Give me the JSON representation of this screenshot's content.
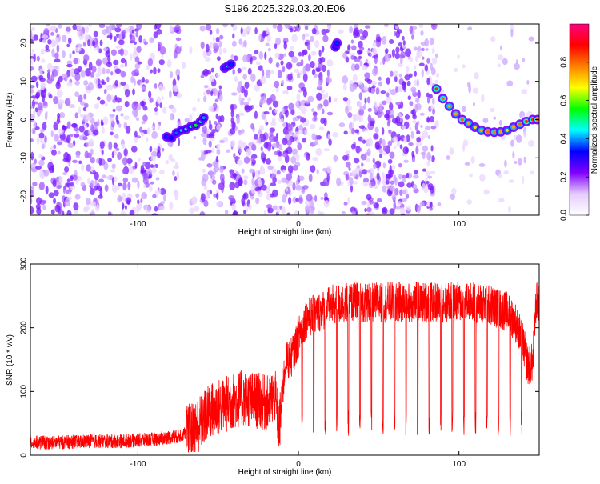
{
  "figure_title": "S196.2025.329.03.20.E06",
  "chart_data": [
    {
      "type": "heatmap",
      "title": "S196.2025.329.03.20.E06",
      "xlabel": "Height of straight line (km)",
      "ylabel": "Frequency (Hz)",
      "xlim": [
        -167,
        150
      ],
      "ylim": [
        -25,
        25
      ],
      "xticks": [
        -100,
        0,
        100
      ],
      "yticks": [
        -20,
        -10,
        0,
        10,
        20
      ],
      "grid": false,
      "colorbar": {
        "label": "Normalized spectral amplitude",
        "range": [
          0,
          1
        ],
        "ticks": [
          0.0,
          0.2,
          0.4,
          0.6,
          0.8
        ],
        "colors": [
          "#ffffff",
          "#e6ccff",
          "#8000ff",
          "#0000ff",
          "#00ffff",
          "#00ff00",
          "#ffff00",
          "#ff8000",
          "#ff0000",
          "#ff0080"
        ]
      },
      "data_gaps_km": [
        [
          -84,
          -78
        ],
        [
          -74,
          -60
        ],
        [
          -47,
          -42
        ],
        [
          20,
          29
        ],
        [
          85,
          150
        ]
      ],
      "features": [
        {
          "name": "bright-track-mid",
          "x": [
            -82,
            -79,
            -76,
            -73,
            -70,
            -67,
            -64,
            -61,
            -59
          ],
          "y": [
            -4.5,
            -4.8,
            -3.5,
            -2.8,
            -2.5,
            -1.8,
            -1.5,
            -0.5,
            0.5
          ],
          "amplitude": [
            0.35,
            0.32,
            0.38,
            0.42,
            0.45,
            0.5,
            0.55,
            0.48,
            0.4
          ]
        },
        {
          "name": "bright-spot-upper",
          "x": [
            -46,
            -44,
            -42
          ],
          "y": [
            13.5,
            14,
            14.5
          ],
          "amplitude": [
            0.35,
            0.45,
            0.35
          ]
        },
        {
          "name": "bright-spot-top",
          "x": [
            23,
            24
          ],
          "y": [
            19,
            20
          ],
          "amplitude": [
            0.3,
            0.35
          ]
        },
        {
          "name": "bright-track-right",
          "x": [
            86,
            90,
            94,
            98,
            102,
            106,
            110,
            114,
            118,
            122,
            126,
            130,
            134,
            138,
            142,
            146,
            149
          ],
          "y": [
            8,
            5.5,
            3.5,
            1.5,
            0,
            -1,
            -2,
            -2.8,
            -3.2,
            -3.3,
            -3.2,
            -2.8,
            -2,
            -1.2,
            -0.5,
            0,
            0
          ],
          "amplitude": [
            0.85,
            0.8,
            0.75,
            0.75,
            0.8,
            0.75,
            0.7,
            0.75,
            0.8,
            0.78,
            0.75,
            0.7,
            0.75,
            0.8,
            0.85,
            0.85,
            0.82
          ]
        }
      ]
    },
    {
      "type": "line",
      "xlabel": "Height of straight line (km)",
      "ylabel": "SNR (10 * v/v)",
      "xlim": [
        -167,
        150
      ],
      "ylim": [
        0,
        300
      ],
      "xticks": [
        -100,
        0,
        100
      ],
      "yticks": [
        0,
        100,
        200,
        300
      ],
      "grid": false,
      "series": [
        {
          "color": "#ff0000",
          "x": [
            -167,
            -150,
            -130,
            -110,
            -90,
            -75,
            -65,
            -55,
            -45,
            -35,
            -25,
            -18,
            -15,
            -12,
            -8,
            -5,
            -2,
            2,
            5,
            10,
            20,
            30,
            40,
            50,
            60,
            70,
            80,
            90,
            100,
            110,
            120,
            130,
            135,
            140,
            143,
            146,
            148,
            150
          ],
          "y": [
            20,
            20,
            22,
            22,
            25,
            30,
            40,
            70,
            80,
            90,
            85,
            80,
            100,
            40,
            150,
            150,
            170,
            200,
            215,
            220,
            235,
            240,
            240,
            240,
            240,
            240,
            240,
            240,
            240,
            240,
            235,
            225,
            210,
            175,
            140,
            145,
            240,
            240
          ]
        }
      ]
    }
  ]
}
